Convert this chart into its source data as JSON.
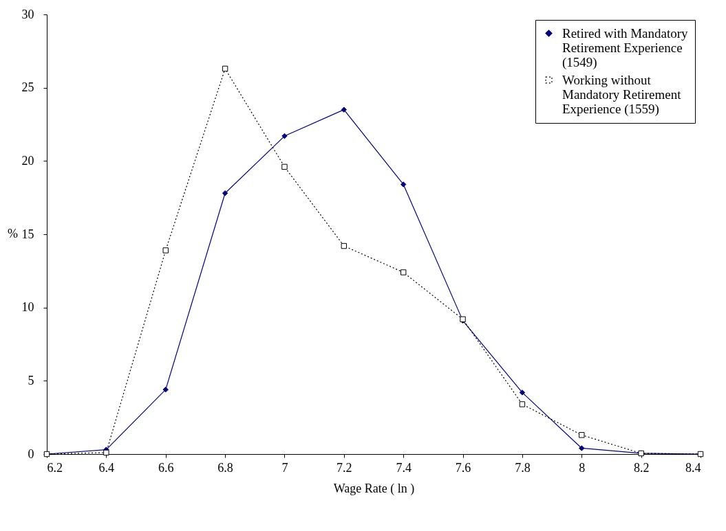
{
  "chart_data": {
    "type": "line",
    "xlabel": "Wage Rate ( ln )",
    "ylabel": "%",
    "x": [
      6.2,
      6.4,
      6.6,
      6.8,
      7.0,
      7.2,
      7.4,
      7.6,
      7.8,
      8.0,
      8.2,
      8.4
    ],
    "series": [
      {
        "name": "Retired with Mandatory Retirement Experience (1549)",
        "color": "#000080",
        "marker": "diamond",
        "line_style": "solid",
        "values": [
          0,
          0.3,
          4.4,
          17.8,
          21.7,
          23.5,
          18.4,
          9.1,
          4.2,
          0.4,
          0.05,
          0
        ]
      },
      {
        "name": "Working without Mandatory Retirement Experience (1559)",
        "color": "#000000",
        "marker": "square",
        "line_style": "dotted",
        "values": [
          0,
          0.1,
          13.9,
          26.3,
          19.6,
          14.2,
          12.4,
          9.2,
          3.4,
          1.3,
          0.05,
          0
        ]
      }
    ],
    "xlim": [
      6.2,
      8.4
    ],
    "xticks": [
      6.2,
      6.4,
      6.6,
      6.8,
      7,
      7.2,
      7.4,
      7.6,
      7.8,
      8,
      8.2,
      8.4
    ],
    "ylim": [
      0,
      30
    ],
    "yticks": [
      0,
      5,
      10,
      15,
      20,
      25,
      30
    ],
    "grid": false,
    "legend": "top right"
  }
}
